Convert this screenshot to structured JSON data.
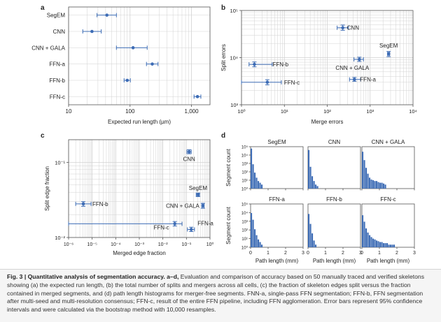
{
  "colors": {
    "series": "#3d6cb5",
    "grid": "#d2d2d2",
    "axis": "#555555"
  },
  "caption": {
    "label": "Fig. 3 | Quantitative analysis of segmentation accuracy. a–d,",
    "text": "Evaluation and comparison of accuracy based on 50 manually traced and verified skeletons showing (a) the expected run length, (b) the total number of splits and mergers across all cells, (c) the fraction of skeleton edges split versus the fraction contained in merged segments, and (d) path length histograms for merger-free segments. FNN-a, single-pass FFN segmentation; FFN-b, FFN segmentation after multi-seed and multi-resolution consensus; FFN-c, result of the entire FFN pipeline, including FFN agglomeration. Error bars represent 95% confidence intervals and were calculated via the bootstrap method with 10,000 resamples."
  },
  "chart_data": [
    {
      "panel": "a",
      "type": "scatter",
      "xlabel": "Expected run length (µm)",
      "ylabel": "",
      "xscale": "log",
      "xlim": [
        10,
        2000
      ],
      "xticks": [
        10,
        100,
        1000
      ],
      "xtick_labels": [
        "10",
        "100",
        "1,000"
      ],
      "grid": true,
      "categories": [
        "SegEM",
        "CNN",
        "CNN + GALA",
        "FFN-a",
        "FFN-b",
        "FFN-c"
      ],
      "points": [
        {
          "label": "SegEM",
          "x": 42,
          "xlo": 29,
          "xhi": 60
        },
        {
          "label": "CNN",
          "x": 24,
          "xlo": 17,
          "xhi": 34
        },
        {
          "label": "CNN + GALA",
          "x": 112,
          "xlo": 60,
          "xhi": 190
        },
        {
          "label": "FFN-a",
          "x": 230,
          "xlo": 185,
          "xhi": 285
        },
        {
          "label": "FFN-b",
          "x": 90,
          "xlo": 80,
          "xhi": 101
        },
        {
          "label": "FFN-c",
          "x": 1250,
          "xlo": 1100,
          "xhi": 1420
        }
      ]
    },
    {
      "panel": "b",
      "type": "scatter",
      "xlabel": "Merge errors",
      "ylabel": "Split errors",
      "xscale": "log",
      "yscale": "log",
      "xlim": [
        1,
        10000
      ],
      "ylim": [
        1000,
        100000
      ],
      "xticks": [
        1,
        10,
        100,
        1000,
        10000
      ],
      "xtick_labels": [
        "10⁰",
        "10¹",
        "10²",
        "10³",
        "10⁴"
      ],
      "yticks": [
        1000,
        10000,
        100000
      ],
      "ytick_labels": [
        "10³",
        "10⁴",
        "10⁵"
      ],
      "grid": true,
      "points": [
        {
          "label": "CNN",
          "x": 230,
          "y": 43000,
          "xlo": 170,
          "xhi": 310,
          "ylo": 38000,
          "yhi": 49000
        },
        {
          "label": "SegEM",
          "x": 2700,
          "y": 12000,
          "xlo": 2550,
          "xhi": 2850,
          "ylo": 10500,
          "yhi": 13500
        },
        {
          "label": "CNN + GALA",
          "x": 560,
          "y": 9200,
          "xlo": 420,
          "xhi": 700,
          "ylo": 8300,
          "yhi": 10200
        },
        {
          "label": "FFN-b",
          "x": 2,
          "y": 7200,
          "xlo": 1.5,
          "xhi": 5.2,
          "ylo": 6400,
          "yhi": 8100
        },
        {
          "label": "FFN-a",
          "x": 430,
          "y": 3450,
          "xlo": 330,
          "xhi": 600,
          "ylo": 3150,
          "yhi": 3800
        },
        {
          "label": "FFN-c",
          "x": 4,
          "y": 3000,
          "xlo": 1,
          "xhi": 8.5,
          "ylo": 2650,
          "yhi": 3400
        }
      ]
    },
    {
      "panel": "c",
      "type": "scatter",
      "xlabel": "Merged edge fraction",
      "ylabel": "Split edge fraction",
      "xscale": "log",
      "yscale": "log",
      "xlim": [
        1e-06,
        1
      ],
      "ylim": [
        0.01,
        0.2
      ],
      "xticks": [
        1e-06,
        1e-05,
        0.0001,
        0.001,
        0.01,
        0.1,
        1
      ],
      "xtick_labels": [
        "10⁻⁶",
        "10⁻⁵",
        "10⁻⁴",
        "10⁻³",
        "10⁻²",
        "10⁻¹",
        "10⁰"
      ],
      "yticks": [
        0.01,
        0.1
      ],
      "ytick_labels": [
        "10⁻²",
        "10⁻¹"
      ],
      "grid": true,
      "points": [
        {
          "label": "CNN",
          "x": 0.13,
          "y": 0.138,
          "xlo": 0.105,
          "xhi": 0.16,
          "ylo": 0.13,
          "yhi": 0.147
        },
        {
          "label": "SegEM",
          "x": 0.31,
          "y": 0.037,
          "xlo": 0.26,
          "xhi": 0.36,
          "ylo": 0.035,
          "yhi": 0.039
        },
        {
          "label": "CNN + GALA",
          "x": 0.5,
          "y": 0.0265,
          "xlo": 0.45,
          "xhi": 0.56,
          "ylo": 0.0245,
          "yhi": 0.0285
        },
        {
          "label": "FFN-b",
          "x": 4.2e-06,
          "y": 0.028,
          "xlo": 2e-06,
          "xhi": 9e-06,
          "ylo": 0.026,
          "yhi": 0.03
        },
        {
          "label": "FFN-a",
          "x": 0.16,
          "y": 0.0128,
          "xlo": 0.11,
          "xhi": 0.22,
          "ylo": 0.012,
          "yhi": 0.0137
        },
        {
          "label": "FFN-c",
          "x": 0.032,
          "y": 0.0152,
          "xlo": 1e-06,
          "xhi": 0.065,
          "ylo": 0.0142,
          "yhi": 0.0163
        }
      ]
    },
    {
      "panel": "d",
      "type": "bar",
      "xlabel": "Path length (mm)",
      "ylabel": "Segment count",
      "xlim": [
        0,
        3
      ],
      "xticks": [
        0,
        1,
        2,
        3
      ],
      "yscale": "log",
      "ylim": [
        1,
        100000
      ],
      "ytick_labels": [
        "10⁰",
        "10¹",
        "10²",
        "10³",
        "10⁴",
        "10⁵"
      ],
      "bin_width_mm": 0.1,
      "subplots": [
        {
          "title": "SegEM",
          "counts": [
            60000,
            800,
            80,
            20,
            8,
            5,
            3
          ]
        },
        {
          "title": "CNN",
          "counts": [
            40000,
            400,
            30,
            8,
            3,
            2
          ]
        },
        {
          "title": "CNN + GALA",
          "counts": [
            25000,
            2500,
            300,
            60,
            20,
            12,
            10,
            8,
            8,
            6,
            5,
            5,
            4,
            3
          ]
        },
        {
          "title": "FFN-a",
          "counts": [
            9000,
            1500,
            120,
            25,
            8,
            4,
            2,
            1,
            1,
            1,
            1,
            1
          ]
        },
        {
          "title": "FFN-b",
          "counts": [
            7000,
            500,
            40,
            6,
            2,
            1
          ]
        },
        {
          "title": "FFN-c",
          "counts": [
            5000,
            900,
            150,
            50,
            25,
            15,
            10,
            8,
            6,
            5,
            4,
            4,
            3,
            3,
            3,
            2,
            2,
            2,
            2,
            1,
            1,
            1,
            1,
            1,
            1
          ]
        }
      ]
    }
  ]
}
